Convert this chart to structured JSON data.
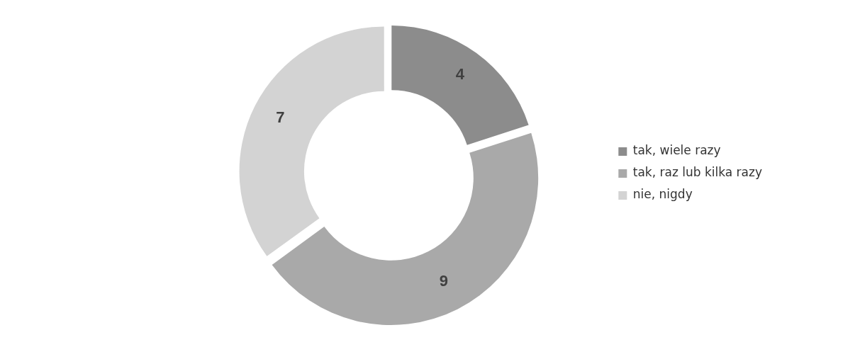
{
  "chart_data": {
    "type": "donut",
    "categories": [
      "tak, wiele razy",
      "tak, raz lub kilka razy",
      "nie, nigdy"
    ],
    "values": [
      4,
      9,
      7
    ],
    "colors": [
      "#8c8c8c",
      "#a9a9a9",
      "#d3d3d3"
    ],
    "data_labels": true,
    "legend": "right"
  }
}
